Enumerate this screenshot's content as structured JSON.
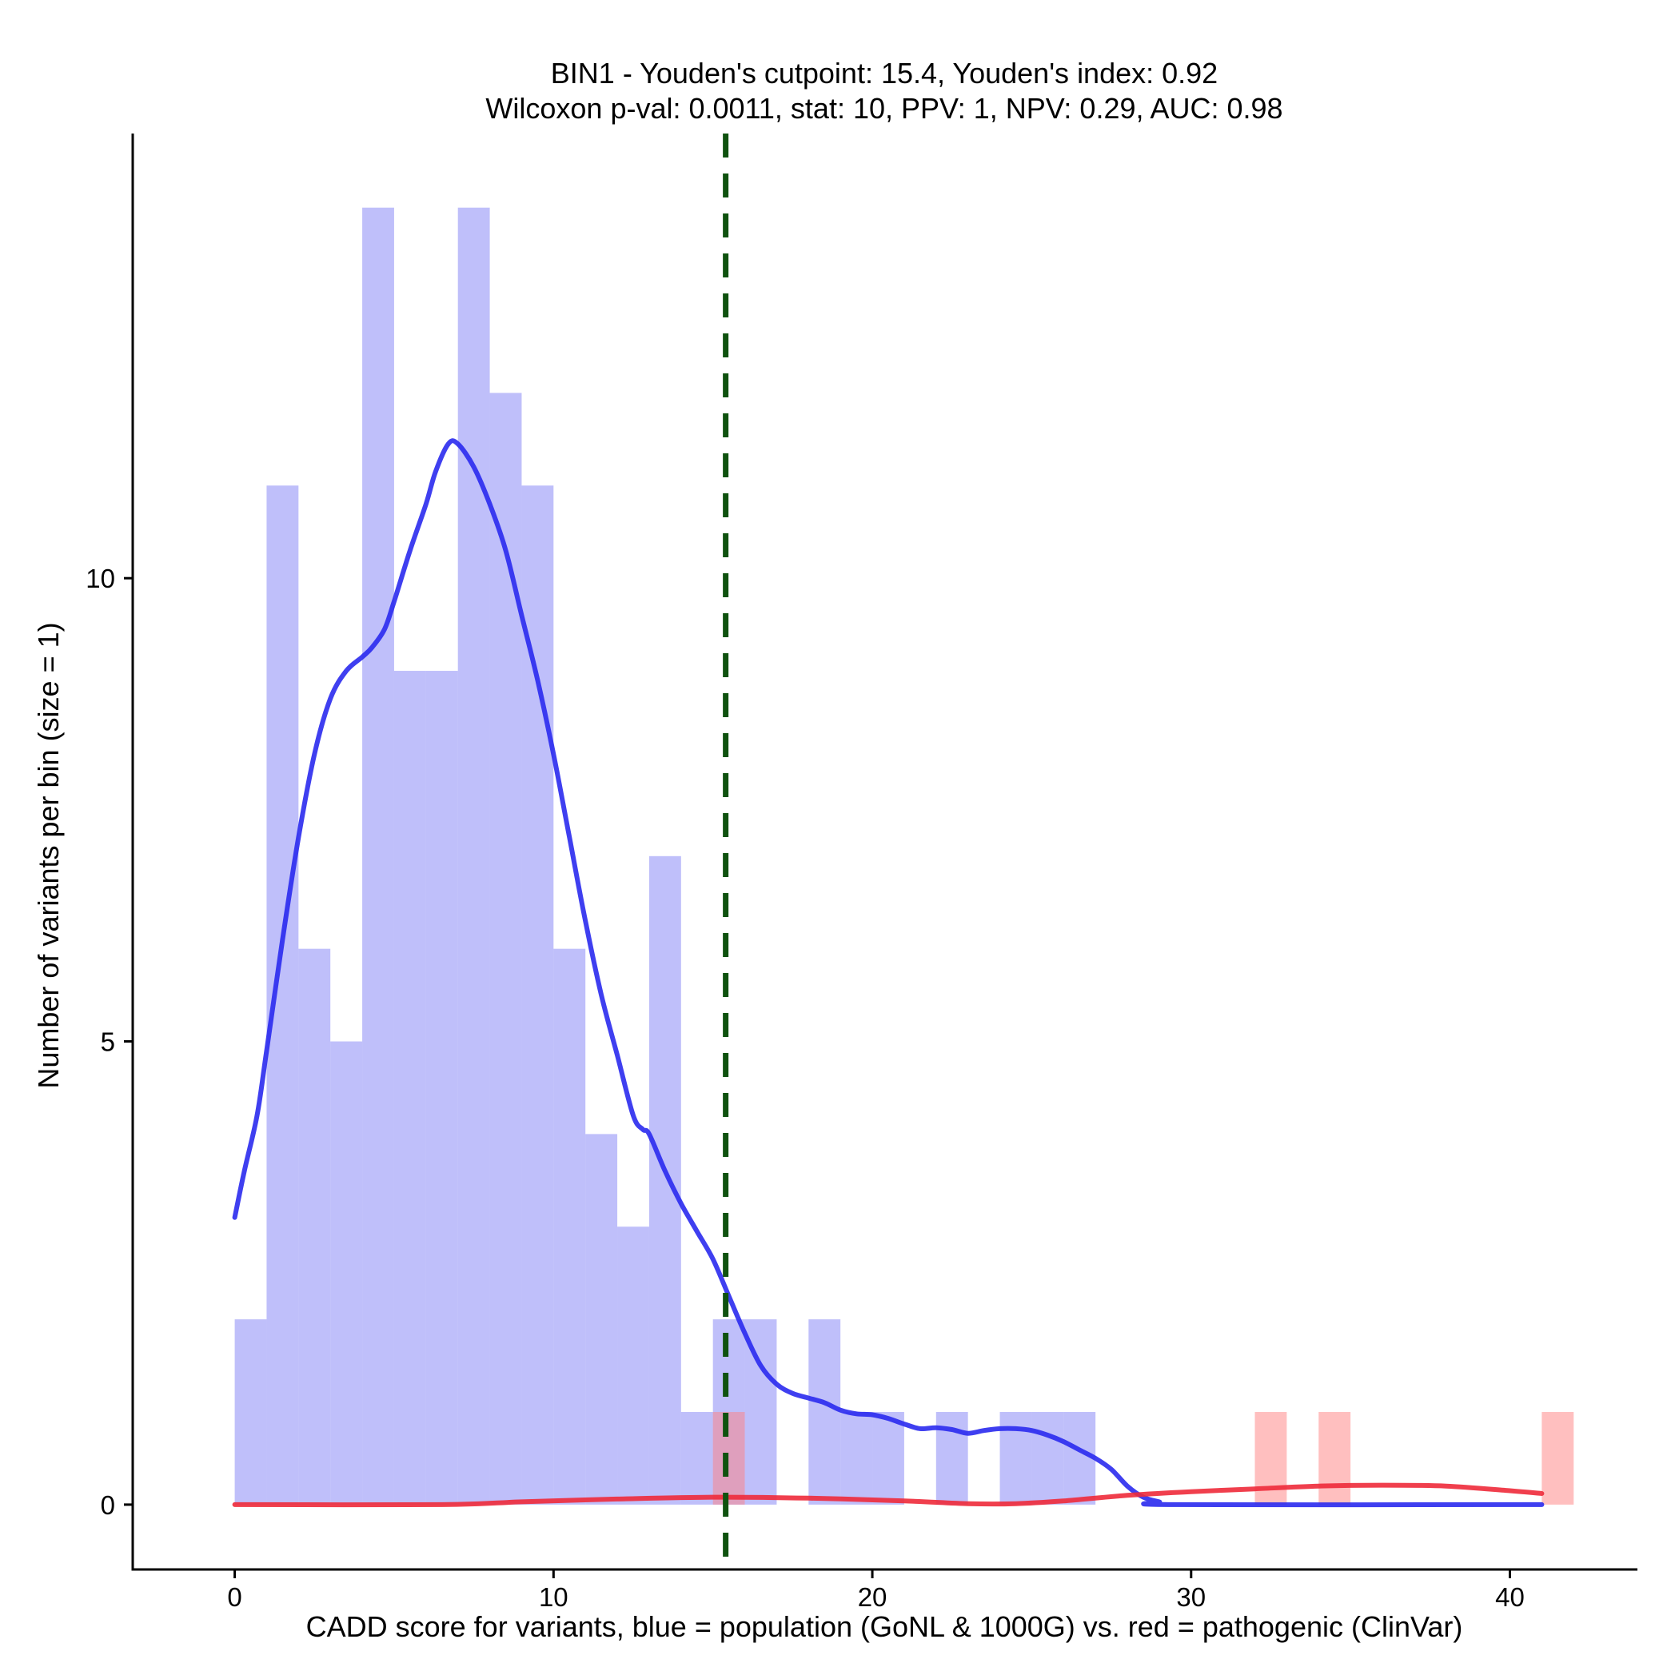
{
  "chart_data": {
    "type": "histogram",
    "title_line1": "BIN1 - Youden's cutpoint: 15.4, Youden's index: 0.92",
    "title_line2": "Wilcoxon p-val: 0.0011, stat: 10, PPV: 1, NPV: 0.29, AUC: 0.98",
    "xlabel": "CADD score for variants, blue = population (GoNL & 1000G) vs. red = pathogenic (ClinVar)",
    "ylabel": "Number of variants per bin (size = 1)",
    "xlim": [
      -3.2,
      44
    ],
    "ylim": [
      -0.7,
      14.8
    ],
    "x_ticks": [
      0,
      10,
      20,
      30,
      40
    ],
    "y_ticks": [
      0,
      5,
      10
    ],
    "bin_size": 1,
    "cutpoint": 15.4,
    "colors": {
      "population": "#8080f5",
      "pathogenic": "#ff8080",
      "population_density": "#2a2aee",
      "pathogenic_density": "#ee2a3a",
      "cutpoint": "#0f520f"
    },
    "series": [
      {
        "name": "population (GoNL & 1000G)",
        "bins": [
          {
            "start": 0,
            "count": 2
          },
          {
            "start": 1,
            "count": 11
          },
          {
            "start": 2,
            "count": 6
          },
          {
            "start": 3,
            "count": 5
          },
          {
            "start": 4,
            "count": 14
          },
          {
            "start": 5,
            "count": 9
          },
          {
            "start": 6,
            "count": 9
          },
          {
            "start": 7,
            "count": 14
          },
          {
            "start": 8,
            "count": 12
          },
          {
            "start": 9,
            "count": 11
          },
          {
            "start": 10,
            "count": 6
          },
          {
            "start": 11,
            "count": 4
          },
          {
            "start": 12,
            "count": 3
          },
          {
            "start": 13,
            "count": 7
          },
          {
            "start": 14,
            "count": 1
          },
          {
            "start": 15,
            "count": 2
          },
          {
            "start": 16,
            "count": 2
          },
          {
            "start": 18,
            "count": 2
          },
          {
            "start": 19,
            "count": 1
          },
          {
            "start": 20,
            "count": 1
          },
          {
            "start": 22,
            "count": 1
          },
          {
            "start": 24,
            "count": 1
          },
          {
            "start": 25,
            "count": 1
          },
          {
            "start": 26,
            "count": 1
          }
        ],
        "density": [
          [
            0.0,
            3.1
          ],
          [
            0.3,
            3.6
          ],
          [
            0.7,
            4.2
          ],
          [
            1.0,
            4.9
          ],
          [
            1.5,
            6.1
          ],
          [
            2.0,
            7.2
          ],
          [
            2.5,
            8.1
          ],
          [
            3.0,
            8.7
          ],
          [
            3.5,
            9.0
          ],
          [
            4.0,
            9.15
          ],
          [
            4.3,
            9.25
          ],
          [
            4.7,
            9.45
          ],
          [
            5.0,
            9.75
          ],
          [
            5.5,
            10.3
          ],
          [
            6.0,
            10.8
          ],
          [
            6.3,
            11.15
          ],
          [
            6.7,
            11.45
          ],
          [
            7.0,
            11.45
          ],
          [
            7.5,
            11.2
          ],
          [
            8.0,
            10.8
          ],
          [
            8.5,
            10.3
          ],
          [
            9.0,
            9.6
          ],
          [
            9.5,
            8.9
          ],
          [
            10.0,
            8.1
          ],
          [
            10.5,
            7.2
          ],
          [
            11.0,
            6.3
          ],
          [
            11.5,
            5.5
          ],
          [
            12.0,
            4.85
          ],
          [
            12.5,
            4.2
          ],
          [
            12.8,
            4.05
          ],
          [
            13.0,
            4.0
          ],
          [
            13.5,
            3.6
          ],
          [
            14.0,
            3.25
          ],
          [
            14.5,
            2.95
          ],
          [
            15.0,
            2.65
          ],
          [
            15.5,
            2.25
          ],
          [
            16.0,
            1.85
          ],
          [
            16.5,
            1.5
          ],
          [
            17.0,
            1.3
          ],
          [
            17.5,
            1.2
          ],
          [
            18.0,
            1.15
          ],
          [
            18.5,
            1.1
          ],
          [
            19.0,
            1.02
          ],
          [
            19.5,
            0.98
          ],
          [
            20.0,
            0.97
          ],
          [
            20.5,
            0.93
          ],
          [
            21.0,
            0.87
          ],
          [
            21.5,
            0.82
          ],
          [
            22.0,
            0.83
          ],
          [
            22.5,
            0.81
          ],
          [
            23.0,
            0.77
          ],
          [
            23.5,
            0.8
          ],
          [
            24.0,
            0.82
          ],
          [
            24.5,
            0.82
          ],
          [
            25.0,
            0.8
          ],
          [
            25.5,
            0.75
          ],
          [
            26.0,
            0.68
          ],
          [
            26.5,
            0.59
          ],
          [
            27.0,
            0.5
          ],
          [
            27.5,
            0.38
          ],
          [
            28.0,
            0.2
          ],
          [
            28.5,
            0.08
          ],
          [
            29.0,
            0.03
          ],
          [
            29.5,
            0.0
          ],
          [
            41.0,
            0.0
          ]
        ]
      },
      {
        "name": "pathogenic (ClinVar)",
        "bins": [
          {
            "start": 15,
            "count": 1
          },
          {
            "start": 32,
            "count": 1
          },
          {
            "start": 34,
            "count": 1
          },
          {
            "start": 41,
            "count": 1
          }
        ],
        "density": [
          [
            0.0,
            0.0
          ],
          [
            6.5,
            0.0
          ],
          [
            9.0,
            0.03
          ],
          [
            12.0,
            0.06
          ],
          [
            15.0,
            0.08
          ],
          [
            18.0,
            0.07
          ],
          [
            21.0,
            0.04
          ],
          [
            23.0,
            0.01
          ],
          [
            24.5,
            0.01
          ],
          [
            26.0,
            0.04
          ],
          [
            28.0,
            0.1
          ],
          [
            30.0,
            0.14
          ],
          [
            32.0,
            0.17
          ],
          [
            34.0,
            0.2
          ],
          [
            36.0,
            0.21
          ],
          [
            38.0,
            0.2
          ],
          [
            40.0,
            0.15
          ],
          [
            41.0,
            0.12
          ]
        ]
      }
    ]
  }
}
